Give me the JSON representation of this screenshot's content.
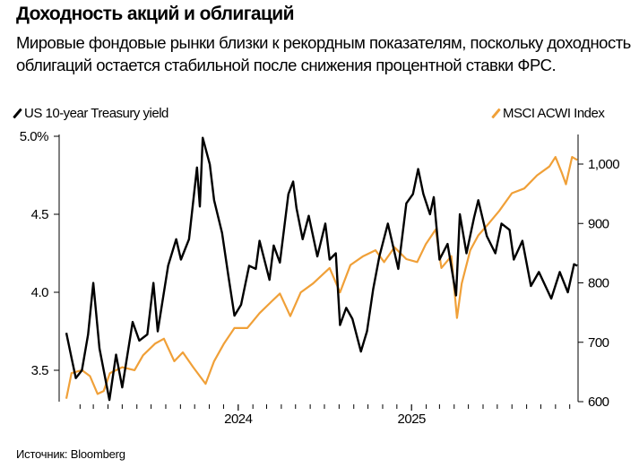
{
  "header": {
    "title": "Доходность акций и облигаций",
    "subtitle": "Мировые фондовые рынки близки к рекордным показателям, поскольку доходность облигаций остается стабильной после снижения процентной ставки ФРС."
  },
  "footer": {
    "source": "Источник: Bloomberg"
  },
  "chart_data": {
    "type": "line",
    "title": "Доходность акций и облигаций",
    "legend_placement": "top",
    "grid": false,
    "x_axis": {
      "type": "date",
      "range": [
        "2023-01-01",
        "2025-12-20"
      ],
      "tick_labels": [
        {
          "date": "2024-01-01",
          "label": "2024"
        },
        {
          "date": "2025-01-01",
          "label": "2025"
        }
      ],
      "minor_ticks": "monthly"
    },
    "y_left": {
      "range": [
        3.3,
        5.0
      ],
      "ticks": [
        {
          "v": 5.0,
          "label": "5.0%"
        },
        {
          "v": 4.5,
          "label": "4.5"
        },
        {
          "v": 4.0,
          "label": "4.0"
        },
        {
          "v": 3.5,
          "label": "3.5"
        }
      ]
    },
    "y_right": {
      "range": [
        600,
        1050
      ],
      "ticks": [
        {
          "v": 1000,
          "label": "1,000"
        },
        {
          "v": 900,
          "label": "900"
        },
        {
          "v": 800,
          "label": "800"
        },
        {
          "v": 700,
          "label": "700"
        },
        {
          "v": 600,
          "label": "600"
        }
      ]
    },
    "series": [
      {
        "name": "US 10-year Treasury yield",
        "axis": "left",
        "color": "#000000",
        "points": [
          [
            "2023-01-03",
            3.74
          ],
          [
            "2023-01-14",
            3.58
          ],
          [
            "2023-01-23",
            3.45
          ],
          [
            "2023-02-05",
            3.5
          ],
          [
            "2023-02-18",
            3.73
          ],
          [
            "2023-03-01",
            4.06
          ],
          [
            "2023-03-14",
            3.64
          ],
          [
            "2023-04-04",
            3.31
          ],
          [
            "2023-04-18",
            3.6
          ],
          [
            "2023-05-01",
            3.39
          ],
          [
            "2023-05-23",
            3.81
          ],
          [
            "2023-06-06",
            3.69
          ],
          [
            "2023-06-23",
            3.73
          ],
          [
            "2023-07-06",
            4.06
          ],
          [
            "2023-07-15",
            3.75
          ],
          [
            "2023-08-06",
            4.17
          ],
          [
            "2023-08-23",
            4.34
          ],
          [
            "2023-09-02",
            4.21
          ],
          [
            "2023-09-19",
            4.34
          ],
          [
            "2023-10-06",
            4.8
          ],
          [
            "2023-10-12",
            4.55
          ],
          [
            "2023-10-18",
            4.99
          ],
          [
            "2023-11-02",
            4.82
          ],
          [
            "2023-11-11",
            4.59
          ],
          [
            "2023-11-28",
            4.38
          ],
          [
            "2023-12-11",
            4.11
          ],
          [
            "2023-12-24",
            3.85
          ],
          [
            "2024-01-07",
            3.92
          ],
          [
            "2024-01-24",
            4.17
          ],
          [
            "2024-02-07",
            4.15
          ],
          [
            "2024-02-15",
            4.33
          ],
          [
            "2024-03-07",
            4.08
          ],
          [
            "2024-03-16",
            4.3
          ],
          [
            "2024-03-29",
            4.19
          ],
          [
            "2024-04-16",
            4.63
          ],
          [
            "2024-04-26",
            4.71
          ],
          [
            "2024-05-03",
            4.54
          ],
          [
            "2024-05-16",
            4.34
          ],
          [
            "2024-05-29",
            4.49
          ],
          [
            "2024-06-16",
            4.23
          ],
          [
            "2024-07-03",
            4.44
          ],
          [
            "2024-07-12",
            4.21
          ],
          [
            "2024-07-25",
            4.25
          ],
          [
            "2024-08-03",
            3.79
          ],
          [
            "2024-08-16",
            3.9
          ],
          [
            "2024-08-29",
            3.83
          ],
          [
            "2024-09-16",
            3.62
          ],
          [
            "2024-09-29",
            3.75
          ],
          [
            "2024-10-12",
            4.02
          ],
          [
            "2024-10-25",
            4.23
          ],
          [
            "2024-11-12",
            4.44
          ],
          [
            "2024-12-04",
            4.15
          ],
          [
            "2024-12-21",
            4.57
          ],
          [
            "2025-01-04",
            4.63
          ],
          [
            "2025-01-15",
            4.79
          ],
          [
            "2025-01-26",
            4.63
          ],
          [
            "2025-02-09",
            4.5
          ],
          [
            "2025-02-17",
            4.61
          ],
          [
            "2025-03-01",
            4.21
          ],
          [
            "2025-03-18",
            4.31
          ],
          [
            "2025-04-05",
            3.98
          ],
          [
            "2025-04-13",
            4.5
          ],
          [
            "2025-04-27",
            4.25
          ],
          [
            "2025-05-13",
            4.48
          ],
          [
            "2025-05-22",
            4.59
          ],
          [
            "2025-06-09",
            4.36
          ],
          [
            "2025-06-27",
            4.25
          ],
          [
            "2025-07-10",
            4.44
          ],
          [
            "2025-07-27",
            4.4
          ],
          [
            "2025-08-05",
            4.21
          ],
          [
            "2025-08-23",
            4.33
          ],
          [
            "2025-09-10",
            4.04
          ],
          [
            "2025-09-27",
            4.13
          ],
          [
            "2025-10-23",
            3.96
          ],
          [
            "2025-11-10",
            4.13
          ],
          [
            "2025-11-27",
            4.0
          ],
          [
            "2025-12-10",
            4.18
          ],
          [
            "2025-12-17",
            4.17
          ]
        ]
      },
      {
        "name": "MSCI ACWI Index",
        "axis": "right",
        "color": "#F0A038",
        "points": [
          [
            "2023-01-03",
            605
          ],
          [
            "2023-01-14",
            648
          ],
          [
            "2023-01-27",
            651
          ],
          [
            "2023-02-05",
            653
          ],
          [
            "2023-02-22",
            643
          ],
          [
            "2023-03-10",
            613
          ],
          [
            "2023-03-23",
            618
          ],
          [
            "2023-04-05",
            648
          ],
          [
            "2023-05-01",
            658
          ],
          [
            "2023-05-27",
            653
          ],
          [
            "2023-06-14",
            678
          ],
          [
            "2023-07-10",
            698
          ],
          [
            "2023-07-28",
            706
          ],
          [
            "2023-08-19",
            668
          ],
          [
            "2023-09-06",
            683
          ],
          [
            "2023-09-28",
            658
          ],
          [
            "2023-10-24",
            630
          ],
          [
            "2023-11-11",
            668
          ],
          [
            "2023-12-02",
            698
          ],
          [
            "2023-12-24",
            724
          ],
          [
            "2024-01-20",
            724
          ],
          [
            "2024-02-15",
            749
          ],
          [
            "2024-03-12",
            769
          ],
          [
            "2024-03-29",
            782
          ],
          [
            "2024-04-20",
            744
          ],
          [
            "2024-05-12",
            784
          ],
          [
            "2024-06-07",
            799
          ],
          [
            "2024-07-12",
            825
          ],
          [
            "2024-08-03",
            784
          ],
          [
            "2024-08-25",
            830
          ],
          [
            "2024-09-21",
            845
          ],
          [
            "2024-10-17",
            855
          ],
          [
            "2024-11-04",
            835
          ],
          [
            "2024-11-26",
            860
          ],
          [
            "2024-12-21",
            840
          ],
          [
            "2025-01-13",
            835
          ],
          [
            "2025-01-31",
            865
          ],
          [
            "2025-02-21",
            890
          ],
          [
            "2025-03-05",
            825
          ],
          [
            "2025-03-26",
            845
          ],
          [
            "2025-04-07",
            741
          ],
          [
            "2025-04-17",
            799
          ],
          [
            "2025-05-05",
            855
          ],
          [
            "2025-05-22",
            880
          ],
          [
            "2025-06-13",
            900
          ],
          [
            "2025-07-05",
            921
          ],
          [
            "2025-08-01",
            951
          ],
          [
            "2025-08-27",
            959
          ],
          [
            "2025-09-23",
            981
          ],
          [
            "2025-10-19",
            996
          ],
          [
            "2025-11-01",
            1012
          ],
          [
            "2025-11-14",
            986
          ],
          [
            "2025-11-23",
            966
          ],
          [
            "2025-12-06",
            1012
          ],
          [
            "2025-12-17",
            1007
          ]
        ]
      }
    ]
  }
}
